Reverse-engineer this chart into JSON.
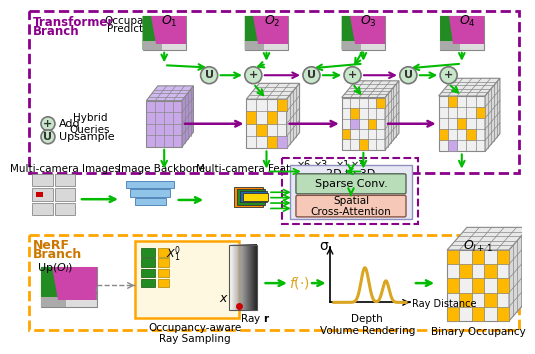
{
  "bg_color": "#ffffff",
  "transformer_border": "#8B008B",
  "nerf_border": "#FFA500",
  "purple_dashed_border": "#8B008B",
  "green_arrow": "#00BB00",
  "purple_arrow": "#8B008B",
  "circle_fill": "#C8E6C9",
  "circle_edge": "#777777",
  "cube_lavender": "#C8A8E8",
  "cube_lavender_right": "#B090D0",
  "cube_lavender_top": "#D0B8F0",
  "cube_white": "#F0F0F0",
  "cube_white_right": "#D8D8D8",
  "cube_white_top": "#E8E8E8",
  "cube_yellow_cell": "#FFB800",
  "cube_lavender_cell": "#C8A8E8",
  "sparse_conv_fill": "#B8DDB8",
  "sparse_conv_edge": "#556655",
  "spatial_attn_fill": "#F5C8B8",
  "spatial_attn_edge": "#885544",
  "box_2d3d_fill": "#E0E0F8",
  "box_2d3d_edge": "#8B008B",
  "nerf_inner_box_fill": "#FFF8E0",
  "nerf_inner_box_edge": "#FFA500",
  "label_purple": "#8B008B",
  "label_orange": "#CC7700",
  "transformer_label": "Transformer\nBranch",
  "nerf_label": "NeRF\nBranch",
  "occ_pred_label": "Occupancy\nPrediction",
  "hybrid_label": "Hybrid\nQueries",
  "add_label": "+  Add",
  "upsample_label": "U  Upsample",
  "multicam_label": "Multi-camera Images",
  "backbone_label": "Image Backbone",
  "features_label": "Multi-camera Features",
  "2d3d_label": "2D to 3D",
  "sparse_label": "Sparse Conv.",
  "spatial_label": "Spatial\nCross-Attention",
  "upol_label": "Up($O_l$)",
  "ray_sampling_label": "Occupancy-aware\nRay Sampling",
  "depth_label": "Depth\nVolume Rendering",
  "binary_label": "Binary Occupancy",
  "ray_label": "Ray r",
  "sigma_label": "σ",
  "raydist_label": "Ray Distance",
  "fc_label": "f(·)"
}
